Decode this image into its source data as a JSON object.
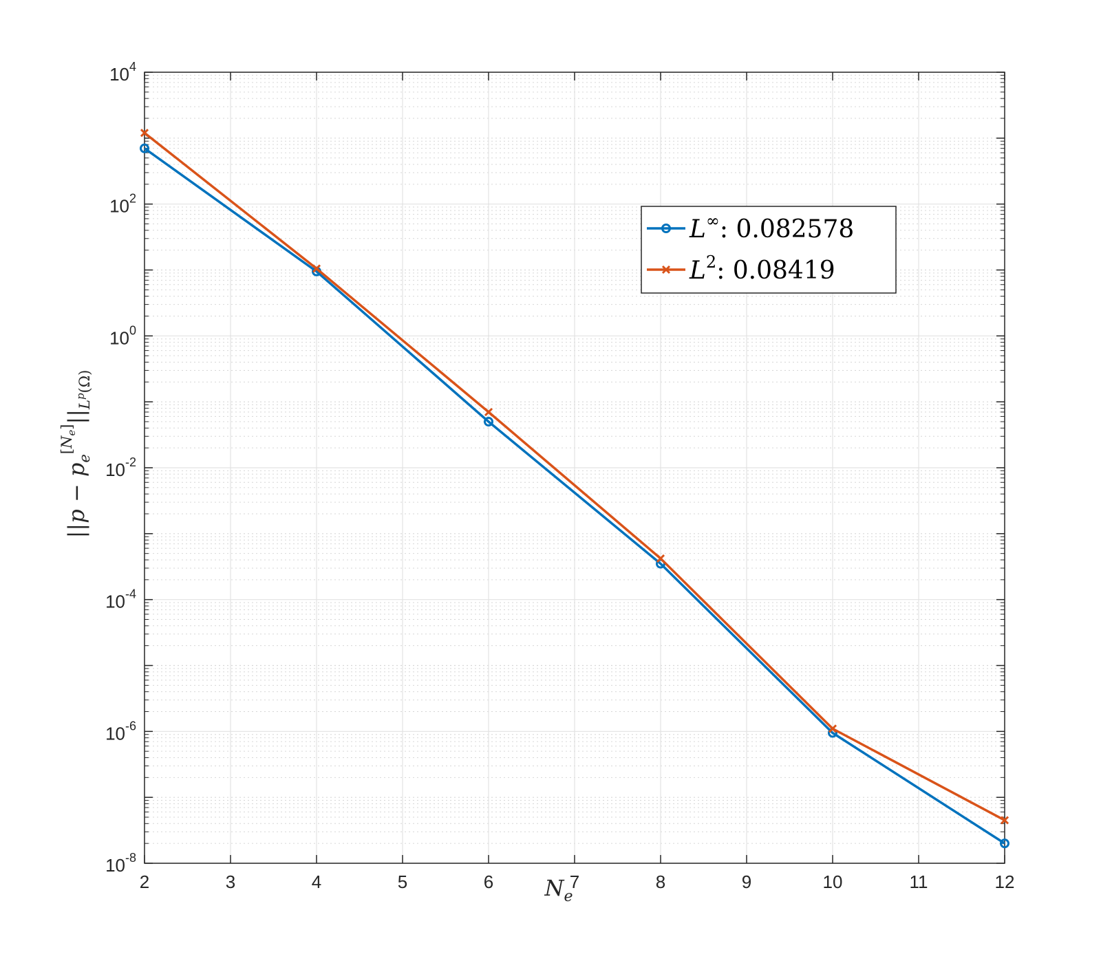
{
  "chart_data": {
    "type": "line",
    "title": "",
    "xlabel": "N_e",
    "ylabel": "||p - p_e^[N_e]||_{L^p(Ω)}",
    "xlim": [
      2,
      12
    ],
    "ylim": [
      1e-08,
      10000.0
    ],
    "yscale": "log",
    "grid": true,
    "minor_grid": true,
    "x_ticks": [
      "2",
      "3",
      "4",
      "5",
      "6",
      "7",
      "8",
      "9",
      "10",
      "11",
      "12"
    ],
    "y_ticks": [
      {
        "base": "10",
        "exp": "4"
      },
      {
        "base": "10",
        "exp": "2"
      },
      {
        "base": "10",
        "exp": "0"
      },
      {
        "base": "10",
        "exp": "-2"
      },
      {
        "base": "10",
        "exp": "-4"
      },
      {
        "base": "10",
        "exp": "-6"
      },
      {
        "base": "10",
        "exp": "-8"
      }
    ],
    "x": [
      2,
      4,
      6,
      8,
      10,
      12
    ],
    "series": [
      {
        "name": "L^∞: 0.082578",
        "legend_symbol": "L",
        "legend_sup": "∞",
        "legend_value": ": 0.082578",
        "marker": "circle",
        "color": "#0072BD",
        "values": [
          700,
          9.5,
          0.05,
          0.00035,
          9.5e-07,
          2e-08
        ]
      },
      {
        "name": "L^2: 0.08419",
        "legend_symbol": "L",
        "legend_sup": "2",
        "legend_value": ": 0.08419",
        "marker": "x",
        "color": "#D95319",
        "values": [
          1200,
          10.5,
          0.07,
          0.00042,
          1.1e-06,
          4.5e-08
        ]
      }
    ],
    "legend_position": "upper-right-inside"
  }
}
